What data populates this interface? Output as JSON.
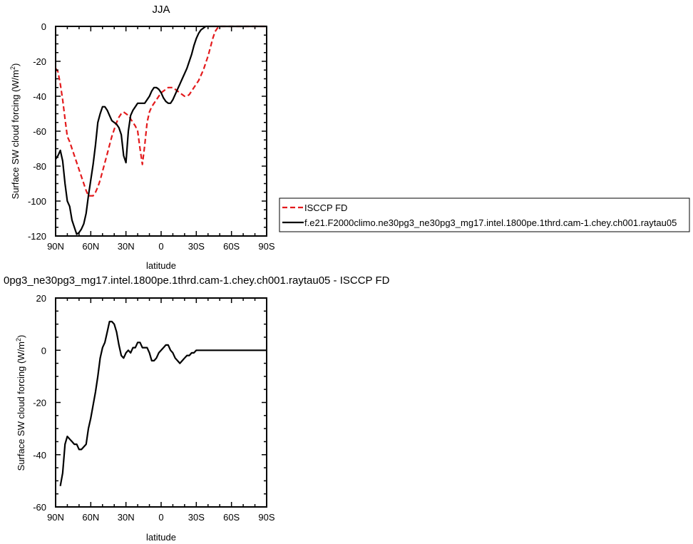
{
  "chart_data": [
    {
      "type": "line",
      "title": "JJA",
      "xlabel": "latitude",
      "ylabel_main": "Surface SW cloud forcing (W/m",
      "ylabel_sup": "2",
      "ylabel_end": ")",
      "xlim": [
        90,
        -90
      ],
      "ylim": [
        -120,
        0
      ],
      "xticks": [
        90,
        60,
        30,
        0,
        -30,
        -60,
        -90
      ],
      "xtick_labels": [
        "90N",
        "60N",
        "30N",
        "0",
        "30S",
        "60S",
        "90S"
      ],
      "yticks": [
        0,
        -20,
        -40,
        -60,
        -80,
        -100,
        -120
      ],
      "ytick_labels": [
        "0",
        "-20",
        "-40",
        "-60",
        "-80",
        "-100",
        "-120"
      ],
      "legend_position": "right",
      "series": [
        {
          "name": "ISCCP FD",
          "color": "#e31a1c",
          "dash": "dashed",
          "x": [
            90,
            88,
            86,
            84,
            82,
            80,
            78,
            76,
            74,
            72,
            70,
            68,
            66,
            64,
            62,
            60,
            58,
            56,
            54,
            52,
            50,
            48,
            46,
            44,
            42,
            40,
            38,
            36,
            34,
            32,
            30,
            28,
            26,
            24,
            22,
            20,
            18,
            16,
            14,
            12,
            10,
            8,
            6,
            4,
            2,
            0,
            -2,
            -4,
            -6,
            -8,
            -10,
            -12,
            -14,
            -16,
            -18,
            -20,
            -22,
            -24,
            -26,
            -28,
            -30,
            -32,
            -34,
            -36,
            -38,
            -40,
            -42,
            -44,
            -46,
            -48,
            -50,
            -52,
            -54,
            -56,
            -58,
            -60,
            -62,
            -64,
            -66,
            -68,
            -70,
            -72,
            -74,
            -76,
            -78,
            -80,
            -82,
            -84,
            -86,
            -88,
            -90
          ],
          "y": [
            -24,
            -26,
            -33,
            -42,
            -53,
            -63,
            -66,
            -70,
            -74,
            -78,
            -82,
            -86,
            -90,
            -94,
            -97,
            -97,
            -97,
            -95,
            -92,
            -88,
            -83,
            -78,
            -73,
            -68,
            -63,
            -59,
            -55,
            -52,
            -50,
            -49,
            -50,
            -51,
            -53,
            -55,
            -57,
            -60,
            -70,
            -79,
            -68,
            -55,
            -49,
            -46,
            -44,
            -42,
            -40,
            -38,
            -37,
            -36,
            -35,
            -35,
            -35,
            -36,
            -37,
            -38,
            -39,
            -40,
            -40,
            -39,
            -37,
            -35,
            -33,
            -31,
            -28,
            -25,
            -21,
            -17,
            -12,
            -7,
            -3,
            -1,
            0,
            0,
            0,
            0,
            0,
            0,
            0,
            0,
            0,
            0,
            0,
            0,
            0,
            0,
            0,
            0,
            0,
            0,
            0,
            0,
            0
          ]
        },
        {
          "name": "f.e21.F2000climo.ne30pg3_ne30pg3_mg17.intel.1800pe.1thrd.cam-1.chey.ch001.raytau05",
          "color": "#000000",
          "dash": "solid",
          "x": [
            90,
            88,
            86,
            84,
            82,
            80,
            78,
            76,
            74,
            72,
            70,
            68,
            66,
            64,
            62,
            60,
            58,
            56,
            54,
            52,
            50,
            48,
            46,
            44,
            42,
            40,
            38,
            36,
            34,
            32,
            30,
            28,
            26,
            24,
            22,
            20,
            18,
            16,
            14,
            12,
            10,
            8,
            6,
            4,
            2,
            0,
            -2,
            -4,
            -6,
            -8,
            -10,
            -12,
            -14,
            -16,
            -18,
            -20,
            -22,
            -24,
            -26,
            -28,
            -30,
            -32,
            -34,
            -36,
            -38,
            -40,
            -42,
            -44,
            -46,
            -48,
            -50,
            -52,
            -54,
            -56,
            -58,
            -60,
            -62,
            -64,
            -66,
            -68,
            -70,
            -72,
            -74,
            -76,
            -78,
            -80,
            -82,
            -84,
            -86,
            -88,
            -90
          ],
          "y": [
            -76,
            -74,
            -71,
            -77,
            -90,
            -100,
            -103,
            -111,
            -115,
            -119,
            -118,
            -116,
            -113,
            -107,
            -97,
            -88,
            -79,
            -68,
            -55,
            -50,
            -46,
            -46,
            -48,
            -51,
            -54,
            -55,
            -56,
            -58,
            -62,
            -74,
            -78,
            -60,
            -51,
            -48,
            -46,
            -44,
            -44,
            -44,
            -44,
            -42,
            -40,
            -37,
            -35,
            -35,
            -36,
            -38,
            -41,
            -43,
            -44,
            -44,
            -42,
            -39,
            -36,
            -33,
            -30,
            -27,
            -24,
            -20,
            -16,
            -11,
            -7,
            -4,
            -2,
            -1,
            0,
            0,
            0,
            0,
            0,
            0,
            0,
            0,
            0,
            0,
            0,
            0,
            0,
            0,
            0,
            0,
            0,
            0,
            0,
            0,
            0,
            0,
            0,
            0,
            0,
            0,
            0
          ]
        }
      ]
    },
    {
      "type": "line",
      "title": "0pg3_ne30pg3_mg17.intel.1800pe.1thrd.cam-1.chey.ch001.raytau05 - ISCCP FD",
      "xlabel": "latitude",
      "ylabel_main": "Surface SW cloud forcing (W/m",
      "ylabel_sup": "2",
      "ylabel_end": ")",
      "xlim": [
        90,
        -90
      ],
      "ylim": [
        -60,
        20
      ],
      "xticks": [
        90,
        60,
        30,
        0,
        -30,
        -60,
        -90
      ],
      "xtick_labels": [
        "90N",
        "60N",
        "30N",
        "0",
        "30S",
        "60S",
        "90S"
      ],
      "yticks": [
        20,
        0,
        -20,
        -40,
        -60
      ],
      "ytick_labels": [
        "20",
        "0",
        "-20",
        "-40",
        "-60"
      ],
      "series": [
        {
          "color": "#000000",
          "dash": "solid",
          "x": [
            86,
            84,
            82,
            80,
            78,
            76,
            74,
            72,
            70,
            68,
            66,
            64,
            62,
            60,
            58,
            56,
            54,
            52,
            50,
            48,
            46,
            44,
            42,
            40,
            38,
            36,
            34,
            32,
            30,
            28,
            26,
            24,
            22,
            20,
            18,
            16,
            14,
            12,
            10,
            8,
            6,
            4,
            2,
            0,
            -2,
            -4,
            -6,
            -8,
            -10,
            -12,
            -14,
            -16,
            -18,
            -20,
            -22,
            -24,
            -26,
            -28,
            -30,
            -32,
            -34,
            -36,
            -38,
            -40,
            -42,
            -44,
            -46,
            -48,
            -50,
            -52,
            -54,
            -56,
            -58,
            -60,
            -62,
            -64,
            -66,
            -68,
            -70,
            -72,
            -74,
            -76,
            -78,
            -80,
            -82,
            -84,
            -86,
            -88,
            -90
          ],
          "y": [
            -52,
            -47,
            -36,
            -33,
            -34,
            -35,
            -36,
            -36,
            -38,
            -38,
            -37,
            -36,
            -30,
            -26,
            -21,
            -16,
            -10,
            -3,
            1,
            3,
            7,
            11,
            11,
            10,
            7,
            2,
            -2,
            -3,
            -1,
            0,
            -1,
            1,
            1,
            3,
            3,
            1,
            1,
            1,
            -1,
            -4,
            -4,
            -3,
            -1,
            0,
            1,
            2,
            2,
            0,
            -1,
            -3,
            -4,
            -5,
            -4,
            -3,
            -2,
            -2,
            -1,
            -1,
            0,
            0,
            0,
            0,
            0,
            0,
            0,
            0,
            0,
            0,
            0,
            0,
            0,
            0,
            0,
            0,
            0,
            0,
            0,
            0,
            0,
            0,
            0,
            0,
            0,
            0,
            0,
            0,
            0,
            0,
            0
          ]
        }
      ]
    }
  ]
}
